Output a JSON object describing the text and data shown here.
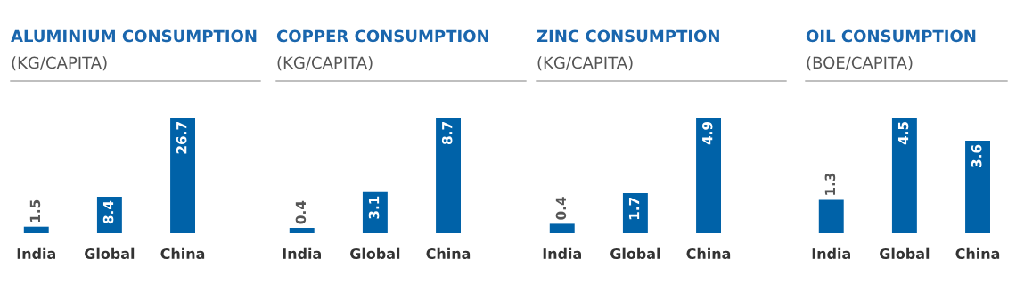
{
  "chart_data": [
    {
      "type": "bar",
      "title": "ALUMINIUM CONSUMPTION",
      "subtitle": "(KG/CAPITA)",
      "categories": [
        "India",
        "Global",
        "China"
      ],
      "values": [
        1.5,
        8.4,
        26.7
      ],
      "color": "#0062a8",
      "data_labels": true,
      "tick_labels": "x"
    },
    {
      "type": "bar",
      "title": "COPPER CONSUMPTION",
      "subtitle": "(KG/CAPITA)",
      "categories": [
        "India",
        "Global",
        "China"
      ],
      "values": [
        0.4,
        3.1,
        8.7
      ],
      "color": "#0062a8",
      "data_labels": true,
      "tick_labels": "x"
    },
    {
      "type": "bar",
      "title": "ZINC CONSUMPTION",
      "subtitle": "(KG/CAPITA)",
      "categories": [
        "India",
        "Global",
        "China"
      ],
      "values": [
        0.4,
        1.7,
        4.9
      ],
      "color": "#0062a8",
      "data_labels": true,
      "tick_labels": "x"
    },
    {
      "type": "bar",
      "title": "OIL CONSUMPTION",
      "subtitle": "(BOE/CAPITA)",
      "categories": [
        "India",
        "Global",
        "China"
      ],
      "values": [
        1.3,
        4.5,
        3.6
      ],
      "color": "#0062a8",
      "data_labels": true,
      "tick_labels": "x"
    }
  ]
}
